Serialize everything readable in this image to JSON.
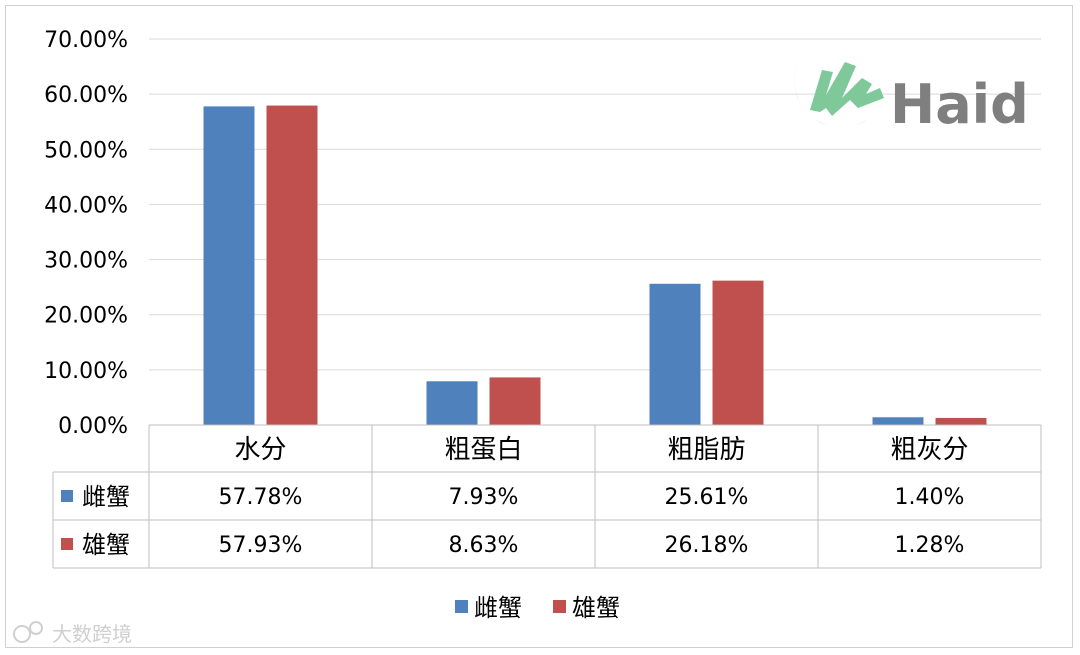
{
  "chart_data": {
    "type": "bar",
    "categories": [
      "水分",
      "粗蛋白",
      "粗脂肪",
      "粗灰分"
    ],
    "series": [
      {
        "name": "雌蟹",
        "values": [
          57.78,
          7.93,
          25.61,
          1.4
        ],
        "labels": [
          "57.78%",
          "7.93%",
          "25.61%",
          "1.40%"
        ],
        "color": "#4f81bd"
      },
      {
        "name": "雄蟹",
        "values": [
          57.93,
          8.63,
          26.18,
          1.28
        ],
        "labels": [
          "57.93%",
          "8.63%",
          "26.18%",
          "1.28%"
        ],
        "color": "#c0504d"
      }
    ],
    "yticks": [
      "0.00%",
      "10.00%",
      "20.00%",
      "30.00%",
      "40.00%",
      "50.00%",
      "60.00%",
      "70.00%"
    ],
    "ylim": [
      0,
      70
    ],
    "grid": true,
    "data_table": true,
    "legend_position": "bottom"
  },
  "logo": {
    "text": "Haid"
  },
  "watermark": {
    "text": "大数跨境"
  },
  "colors": {
    "grid": "#d9d9d9",
    "table_border": "#bfbfbf",
    "logo_blue": "#6f90c9",
    "logo_green": "#7fc89a",
    "logo_text": "#7f7f7f"
  }
}
